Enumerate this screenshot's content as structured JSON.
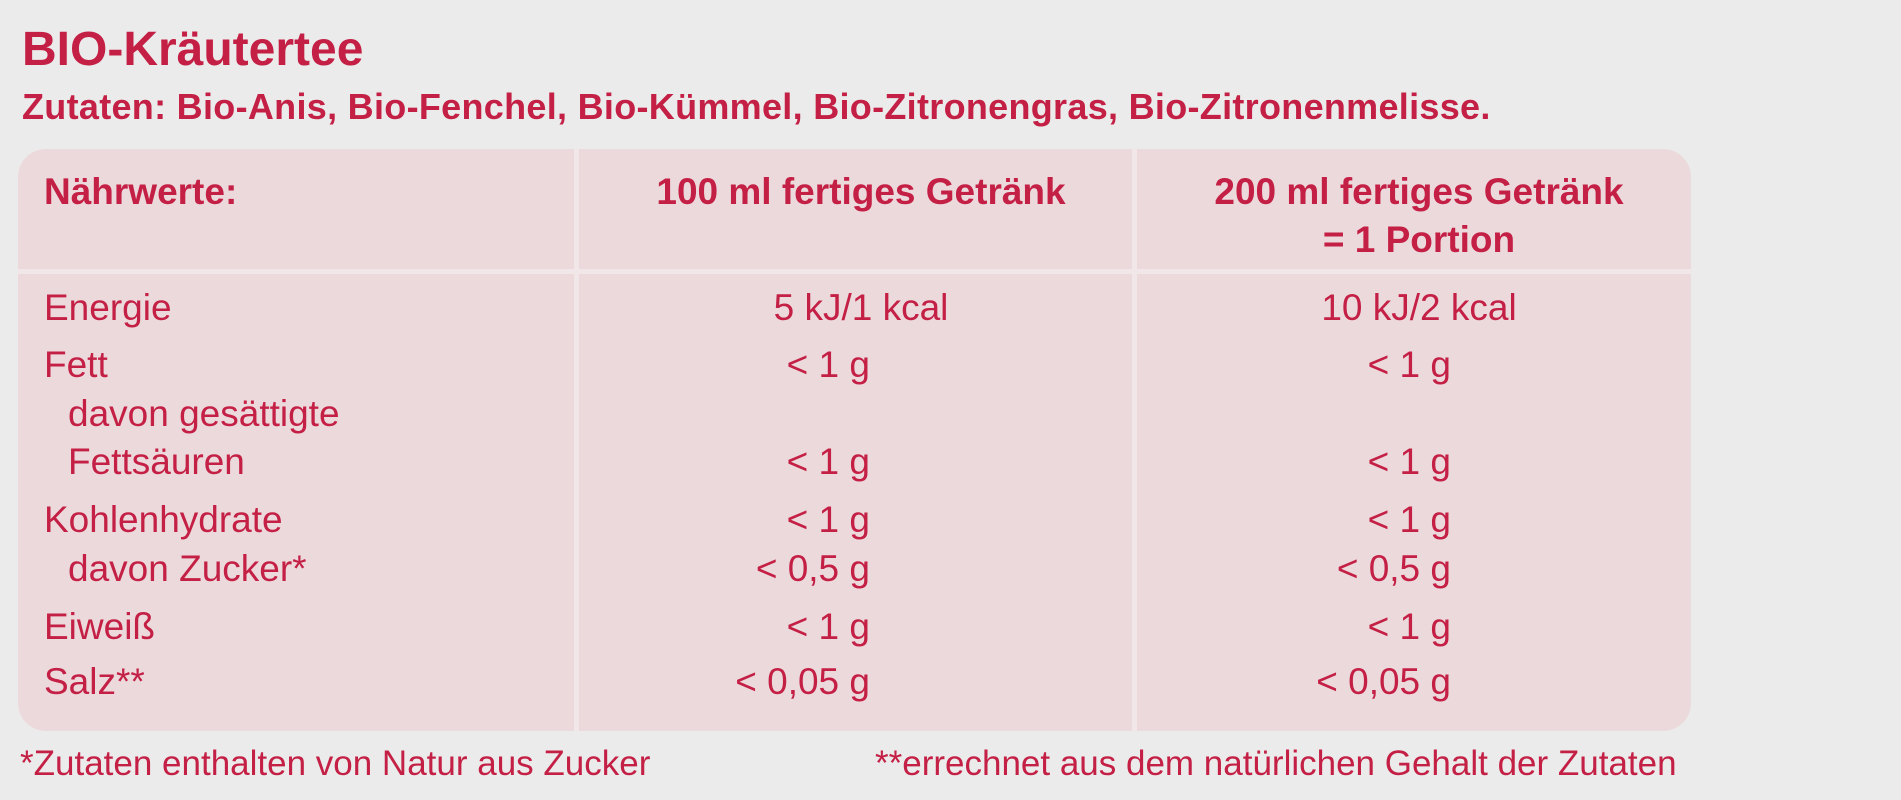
{
  "title": "BIO-Kräutertee",
  "ingredients": "Zutaten: Bio-Anis, Bio-Fenchel, Bio-Kümmel, Bio-Zitronengras, Bio-Zitronenmelisse.",
  "table": {
    "headers": {
      "label": "Nährwerte:",
      "col1": "100 ml fertiges Getränk",
      "col2_line1": "200 ml fertiges Getränk",
      "col2_line2": "= 1 Portion"
    },
    "rows": [
      {
        "label": "Energie",
        "v100": "5 kJ/1 kcal",
        "v200": "10 kJ/2 kcal"
      },
      {
        "label": "Fett",
        "v100": "< 1 g",
        "v200": "< 1 g"
      },
      {
        "label": "davon gesättigte",
        "v100": "",
        "v200": ""
      },
      {
        "label": "Fettsäuren",
        "v100": "< 1 g",
        "v200": "< 1 g"
      },
      {
        "label": "Kohlenhydrate",
        "v100": "< 1 g",
        "v200": "< 1 g"
      },
      {
        "label": "davon Zucker*",
        "v100": "< 0,5 g",
        "v200": "< 0,5 g"
      },
      {
        "label": "Eiweiß",
        "v100": "< 1 g",
        "v200": "< 1 g"
      },
      {
        "label": "Salz**",
        "v100": "< 0,05 g",
        "v200": "< 0,05 g"
      }
    ]
  },
  "footnotes": {
    "sugar": "*Zutaten enthalten von Natur aus Zucker",
    "salt": "**errechnet aus dem natürlichen Gehalt der Zutaten"
  },
  "colors": {
    "text": "#c41f45",
    "table_bg": "#ecd9db",
    "page_bg": "#ebebeb"
  }
}
